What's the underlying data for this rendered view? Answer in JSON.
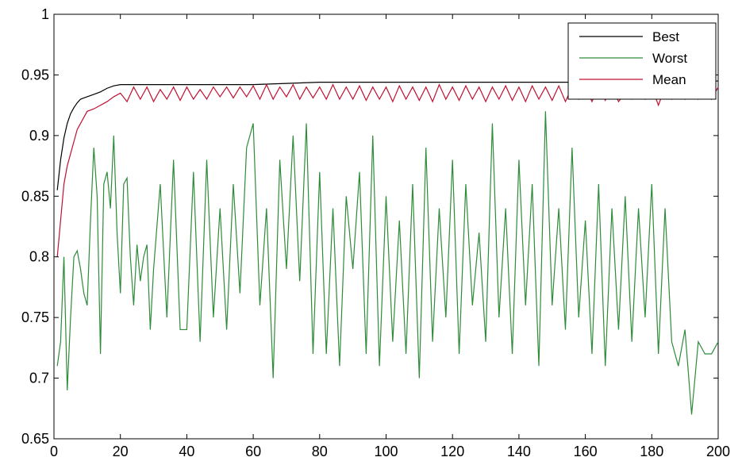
{
  "chart_data": {
    "type": "line",
    "title": "",
    "xlabel": "",
    "ylabel": "",
    "xlim": [
      0,
      200
    ],
    "ylim": [
      0.65,
      1
    ],
    "xticks": [
      "0",
      "20",
      "40",
      "60",
      "80",
      "100",
      "120",
      "140",
      "160",
      "180",
      "200"
    ],
    "yticks": [
      "0.65",
      "0.7",
      "0.75",
      "0.8",
      "0.85",
      "0.9",
      "0.95",
      "1"
    ],
    "grid": false,
    "legend_position": "top-right",
    "series": [
      {
        "name": "Best",
        "color": "#000000",
        "x": [
          1,
          2,
          3,
          4,
          5,
          6,
          7,
          8,
          9,
          10,
          12,
          14,
          16,
          18,
          20,
          25,
          30,
          40,
          50,
          60,
          70,
          80,
          100,
          120,
          140,
          160,
          180,
          200
        ],
        "values": [
          0.855,
          0.88,
          0.898,
          0.91,
          0.918,
          0.923,
          0.927,
          0.93,
          0.931,
          0.932,
          0.934,
          0.936,
          0.939,
          0.941,
          0.942,
          0.942,
          0.942,
          0.942,
          0.942,
          0.942,
          0.943,
          0.944,
          0.944,
          0.944,
          0.944,
          0.944,
          0.944,
          0.945
        ]
      },
      {
        "name": "Worst",
        "color": "#2e8b3a",
        "x": [
          1,
          2,
          3,
          4,
          5,
          6,
          7,
          8,
          9,
          10,
          11,
          12,
          13,
          14,
          15,
          16,
          17,
          18,
          19,
          20,
          21,
          22,
          23,
          24,
          25,
          26,
          27,
          28,
          29,
          30,
          32,
          34,
          36,
          38,
          40,
          42,
          44,
          46,
          48,
          50,
          52,
          54,
          56,
          58,
          60,
          62,
          64,
          66,
          68,
          70,
          72,
          74,
          76,
          78,
          80,
          82,
          84,
          86,
          88,
          90,
          92,
          94,
          96,
          98,
          100,
          102,
          104,
          106,
          108,
          110,
          112,
          114,
          116,
          118,
          120,
          122,
          124,
          126,
          128,
          130,
          132,
          134,
          136,
          138,
          140,
          142,
          144,
          146,
          148,
          150,
          152,
          154,
          156,
          158,
          160,
          162,
          164,
          166,
          168,
          170,
          172,
          174,
          176,
          178,
          180,
          182,
          184,
          186,
          188,
          190,
          192,
          194,
          196,
          198,
          200
        ],
        "values": [
          0.71,
          0.73,
          0.8,
          0.69,
          0.75,
          0.8,
          0.805,
          0.79,
          0.77,
          0.76,
          0.83,
          0.89,
          0.85,
          0.72,
          0.86,
          0.87,
          0.84,
          0.9,
          0.82,
          0.77,
          0.86,
          0.865,
          0.8,
          0.76,
          0.81,
          0.78,
          0.8,
          0.81,
          0.74,
          0.79,
          0.86,
          0.75,
          0.88,
          0.74,
          0.74,
          0.87,
          0.73,
          0.88,
          0.75,
          0.84,
          0.74,
          0.86,
          0.77,
          0.89,
          0.91,
          0.76,
          0.84,
          0.7,
          0.88,
          0.79,
          0.9,
          0.78,
          0.91,
          0.72,
          0.87,
          0.72,
          0.84,
          0.71,
          0.85,
          0.79,
          0.87,
          0.72,
          0.9,
          0.71,
          0.85,
          0.73,
          0.83,
          0.72,
          0.86,
          0.7,
          0.89,
          0.73,
          0.84,
          0.75,
          0.88,
          0.72,
          0.86,
          0.76,
          0.82,
          0.73,
          0.91,
          0.75,
          0.84,
          0.72,
          0.88,
          0.76,
          0.86,
          0.71,
          0.92,
          0.76,
          0.84,
          0.74,
          0.89,
          0.75,
          0.83,
          0.72,
          0.86,
          0.71,
          0.84,
          0.74,
          0.85,
          0.73,
          0.84,
          0.75,
          0.86,
          0.72,
          0.84,
          0.73,
          0.71,
          0.74,
          0.67,
          0.73,
          0.72,
          0.72,
          0.73
        ]
      },
      {
        "name": "Mean",
        "color": "#c01030",
        "x": [
          1,
          2,
          3,
          4,
          5,
          6,
          7,
          8,
          9,
          10,
          12,
          14,
          16,
          18,
          20,
          22,
          24,
          26,
          28,
          30,
          32,
          34,
          36,
          38,
          40,
          42,
          44,
          46,
          48,
          50,
          52,
          54,
          56,
          58,
          60,
          62,
          64,
          66,
          68,
          70,
          72,
          74,
          76,
          78,
          80,
          82,
          84,
          86,
          88,
          90,
          92,
          94,
          96,
          98,
          100,
          102,
          104,
          106,
          108,
          110,
          112,
          114,
          116,
          118,
          120,
          122,
          124,
          126,
          128,
          130,
          132,
          134,
          136,
          138,
          140,
          142,
          144,
          146,
          148,
          150,
          152,
          154,
          156,
          158,
          160,
          162,
          164,
          166,
          168,
          170,
          172,
          174,
          176,
          178,
          180,
          182,
          184,
          186,
          188,
          190,
          192,
          194,
          196,
          198,
          200
        ],
        "values": [
          0.8,
          0.83,
          0.86,
          0.875,
          0.885,
          0.895,
          0.905,
          0.91,
          0.915,
          0.92,
          0.922,
          0.925,
          0.928,
          0.932,
          0.935,
          0.928,
          0.94,
          0.93,
          0.94,
          0.928,
          0.938,
          0.93,
          0.94,
          0.929,
          0.94,
          0.93,
          0.938,
          0.93,
          0.94,
          0.932,
          0.94,
          0.931,
          0.94,
          0.932,
          0.941,
          0.93,
          0.942,
          0.93,
          0.94,
          0.932,
          0.942,
          0.93,
          0.94,
          0.931,
          0.94,
          0.93,
          0.942,
          0.93,
          0.94,
          0.93,
          0.941,
          0.929,
          0.94,
          0.93,
          0.94,
          0.928,
          0.941,
          0.93,
          0.94,
          0.929,
          0.94,
          0.928,
          0.942,
          0.93,
          0.94,
          0.929,
          0.941,
          0.93,
          0.94,
          0.928,
          0.94,
          0.93,
          0.941,
          0.929,
          0.94,
          0.928,
          0.941,
          0.93,
          0.94,
          0.929,
          0.941,
          0.928,
          0.94,
          0.93,
          0.94,
          0.928,
          0.941,
          0.929,
          0.94,
          0.928,
          0.935,
          0.93,
          0.94,
          0.93,
          0.94,
          0.925,
          0.94,
          0.93,
          0.94,
          0.93,
          0.94,
          0.93,
          0.94,
          0.93,
          0.94
        ]
      }
    ]
  }
}
